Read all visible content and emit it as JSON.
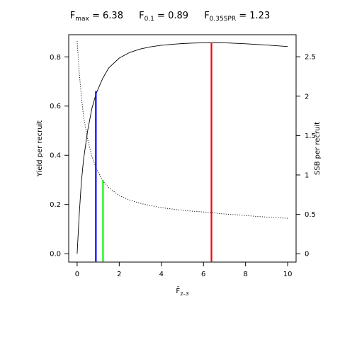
{
  "title": {
    "items": [
      {
        "base": "F",
        "sub": "max",
        "eq": " = ",
        "value": "6.38"
      },
      {
        "base": "F",
        "sub": "0.1",
        "eq": " = ",
        "value": "0.89"
      },
      {
        "base": "F",
        "sub": "0.35SPR",
        "eq": " = ",
        "value": "1.23"
      }
    ]
  },
  "chart_data": {
    "type": "line",
    "xlabel": "F̄",
    "xlabel_sub": "2–3",
    "ylabel_left": "Yield per recruit",
    "ylabel_right": "SSB per recruit",
    "xlim": [
      -0.4,
      10.4
    ],
    "ylim_left": [
      -0.034,
      0.89
    ],
    "ylim_right": [
      -0.106,
      2.78
    ],
    "x_ticks": [
      0,
      2,
      4,
      6,
      8,
      10
    ],
    "y_left_ticks": [
      "0.0",
      "0.2",
      "0.4",
      "0.6",
      "0.8"
    ],
    "y_right_ticks": [
      "0",
      "0.5",
      "1",
      "1.5",
      "2",
      "2.5"
    ],
    "grid": false,
    "legend": "none",
    "series": [
      {
        "axis": "left",
        "style": "solid",
        "color": "#000000",
        "x": [
          0,
          0.1,
          0.2,
          0.3,
          0.5,
          0.7,
          0.9,
          1.2,
          1.5,
          2,
          2.5,
          3,
          3.5,
          4,
          4.5,
          5,
          5.5,
          6,
          6.4,
          7,
          8,
          9,
          10
        ],
        "y": [
          0,
          0.16,
          0.29,
          0.38,
          0.5,
          0.59,
          0.65,
          0.71,
          0.755,
          0.795,
          0.818,
          0.832,
          0.841,
          0.847,
          0.851,
          0.854,
          0.856,
          0.857,
          0.8575,
          0.857,
          0.853,
          0.848,
          0.842
        ]
      },
      {
        "axis": "right",
        "style": "dotted",
        "color": "#000000",
        "x": [
          0,
          0.1,
          0.2,
          0.3,
          0.5,
          0.7,
          0.9,
          1.2,
          1.5,
          2,
          2.5,
          3,
          3.5,
          4,
          5,
          6,
          7,
          8,
          9,
          10
        ],
        "y": [
          2.7,
          2.3,
          2.0,
          1.75,
          1.45,
          1.24,
          1.09,
          0.93,
          0.84,
          0.74,
          0.68,
          0.64,
          0.61,
          0.585,
          0.55,
          0.53,
          0.505,
          0.485,
          0.465,
          0.45
        ]
      }
    ],
    "reference_lines": [
      {
        "name": "F0.1",
        "x": 0.89,
        "y_left_top": 0.66,
        "color": "#0000ff"
      },
      {
        "name": "F0.35SPR",
        "x": 1.23,
        "y_left_top": 0.3,
        "color": "#00ff00"
      },
      {
        "name": "Fmax",
        "x": 6.38,
        "y_left_top": 0.8575,
        "color": "#ff0000"
      }
    ]
  }
}
